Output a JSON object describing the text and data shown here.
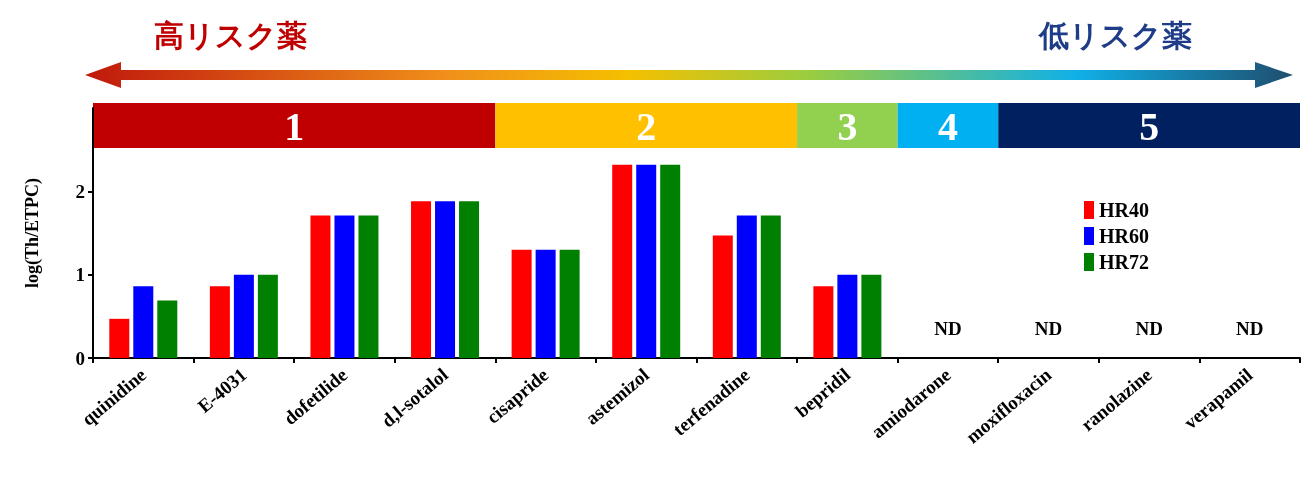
{
  "chart_data": {
    "type": "bar",
    "ylabel": "log(Th/ETPC)",
    "categories": [
      "quinidine",
      "E-4031",
      "dofetilide",
      "d,l-sotalol",
      "cisapride",
      "astemizol",
      "terfenadine",
      "bepridil",
      "amiodarone",
      "moxifloxacin",
      "ranolazine",
      "verapamil"
    ],
    "series": [
      {
        "name": "HR40",
        "color": "#ff0000",
        "values": [
          0.47,
          0.86,
          1.71,
          1.88,
          1.3,
          2.32,
          1.47,
          0.86,
          null,
          null,
          null,
          null
        ]
      },
      {
        "name": "HR60",
        "color": "#0000ff",
        "values": [
          0.86,
          1.0,
          1.71,
          1.88,
          1.3,
          2.32,
          1.71,
          1.0,
          null,
          null,
          null,
          null
        ]
      },
      {
        "name": "HR72",
        "color": "#008000",
        "values": [
          0.69,
          1.0,
          1.71,
          1.88,
          1.3,
          2.32,
          1.71,
          1.0,
          null,
          null,
          null,
          null
        ]
      }
    ],
    "ylim": [
      0,
      3
    ],
    "yticks": [
      0,
      1,
      2
    ],
    "legend": "right",
    "grid": false,
    "bands": [
      {
        "axis": "x",
        "from": "quinidine",
        "to": "d,l-sotalol",
        "label": "1",
        "color": "#c00000"
      },
      {
        "axis": "x",
        "from": "cisapride",
        "to": "terfenadine",
        "label": "2",
        "color": "#ffc000"
      },
      {
        "axis": "x",
        "from": "bepridil",
        "to": "bepridil",
        "label": "3",
        "color": "#92d050"
      },
      {
        "axis": "x",
        "from": "amiodarone",
        "to": "amiodarone",
        "label": "4",
        "color": "#00b0f0"
      },
      {
        "axis": "x",
        "from": "moxifloxacin",
        "to": "verapamil",
        "label": "5",
        "color": "#002060"
      }
    ],
    "annotations": [
      "高リスク薬",
      "低リスク薬",
      "ND",
      "ND",
      "ND",
      "ND"
    ]
  }
}
